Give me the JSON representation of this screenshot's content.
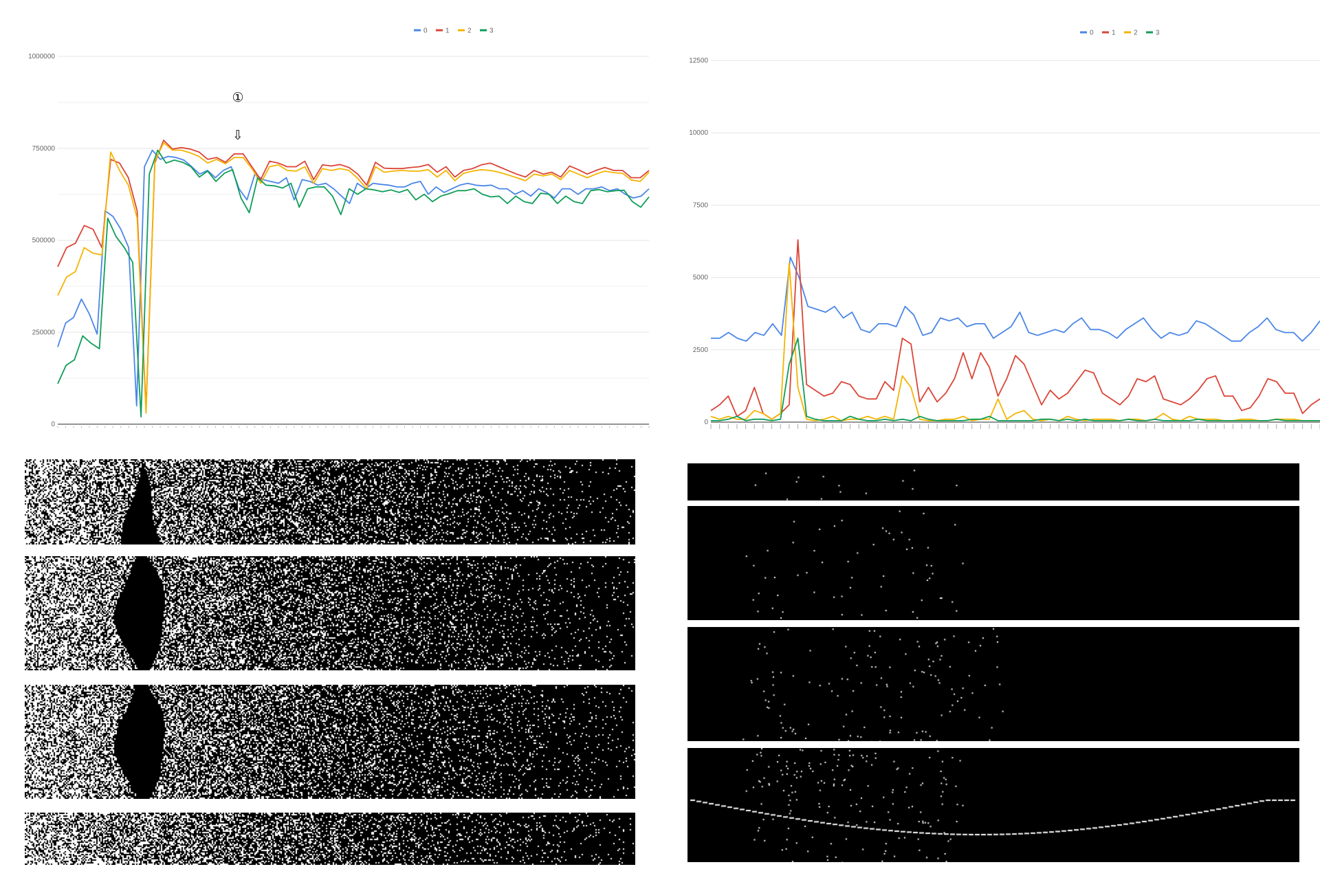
{
  "colors": {
    "s0": "#4a86e8",
    "s1": "#db4437",
    "s2": "#f4b400",
    "s3": "#0f9d58",
    "grid": "#e6e6e6",
    "axis": "#555555"
  },
  "legend": [
    "0",
    "1",
    "2",
    "3"
  ],
  "annotation": {
    "marker": "①",
    "arrow": "⇩"
  },
  "chart_data": [
    {
      "type": "line",
      "ylim": [
        0,
        1000000
      ],
      "y_ticks": [
        "0",
        "250000",
        "500000",
        "750000",
        "1000000"
      ],
      "series": [
        {
          "name": "0",
          "values": [
            210000,
            275000,
            290000,
            340000,
            300000,
            245000,
            580000,
            565000,
            530000,
            480000,
            50000,
            700000,
            745000,
            720000,
            728000,
            725000,
            718000,
            700000,
            680000,
            690000,
            670000,
            690000,
            700000,
            640000,
            610000,
            680000,
            665000,
            660000,
            655000,
            670000,
            610000,
            665000,
            660000,
            650000,
            655000,
            640000,
            620000,
            600000,
            655000,
            640000,
            655000,
            652000,
            650000,
            645000,
            645000,
            655000,
            660000,
            625000,
            645000,
            630000,
            640000,
            650000,
            655000,
            650000,
            648000,
            650000,
            640000,
            640000,
            625000,
            635000,
            620000,
            640000,
            630000,
            615000,
            640000,
            640000,
            625000,
            640000,
            640000,
            645000,
            635000,
            640000,
            625000,
            615000,
            620000,
            640000
          ]
        },
        {
          "name": "1",
          "values": [
            428000,
            480000,
            492000,
            540000,
            530000,
            480000,
            720000,
            710000,
            670000,
            580000,
            40000,
            710000,
            772000,
            748000,
            752000,
            748000,
            740000,
            720000,
            725000,
            712000,
            735000,
            735000,
            700000,
            665000,
            715000,
            710000,
            700000,
            700000,
            715000,
            665000,
            705000,
            702000,
            706000,
            698000,
            680000,
            650000,
            712000,
            696000,
            695000,
            695000,
            698000,
            700000,
            706000,
            685000,
            700000,
            672000,
            690000,
            695000,
            705000,
            710000,
            700000,
            690000,
            680000,
            672000,
            690000,
            680000,
            685000,
            672000,
            702000,
            692000,
            680000,
            690000,
            698000,
            690000,
            690000,
            670000,
            670000,
            690000
          ]
        },
        {
          "name": "2",
          "values": [
            350000,
            400000,
            415000,
            480000,
            465000,
            460000,
            740000,
            690000,
            650000,
            560000,
            30000,
            715000,
            765000,
            745000,
            745000,
            738000,
            728000,
            710000,
            720000,
            708000,
            725000,
            725000,
            695000,
            655000,
            700000,
            705000,
            690000,
            688000,
            700000,
            655000,
            695000,
            690000,
            695000,
            690000,
            668000,
            640000,
            700000,
            685000,
            688000,
            690000,
            688000,
            688000,
            692000,
            672000,
            690000,
            662000,
            682000,
            688000,
            692000,
            690000,
            685000,
            678000,
            670000,
            662000,
            680000,
            675000,
            680000,
            665000,
            690000,
            680000,
            670000,
            680000,
            688000,
            684000,
            682000,
            664000,
            660000,
            685000
          ]
        },
        {
          "name": "3",
          "values": [
            110000,
            160000,
            175000,
            240000,
            220000,
            205000,
            560000,
            510000,
            480000,
            440000,
            20000,
            680000,
            745000,
            710000,
            718000,
            712000,
            700000,
            672000,
            688000,
            660000,
            682000,
            692000,
            615000,
            575000,
            670000,
            650000,
            648000,
            642000,
            655000,
            590000,
            640000,
            645000,
            645000,
            620000,
            570000,
            640000,
            625000,
            640000,
            637000,
            632000,
            637000,
            630000,
            638000,
            610000,
            625000,
            605000,
            620000,
            627000,
            635000,
            635000,
            640000,
            625000,
            618000,
            620000,
            600000,
            620000,
            605000,
            600000,
            628000,
            625000,
            600000,
            620000,
            605000,
            600000,
            635000,
            638000,
            632000,
            635000,
            636000,
            605000,
            590000,
            618000
          ]
        }
      ]
    },
    {
      "type": "line",
      "ylim": [
        0,
        12500
      ],
      "y_ticks": [
        "0",
        "2500",
        "5000",
        "7500",
        "10000",
        "12500"
      ],
      "series": [
        {
          "name": "0",
          "values": [
            2900,
            2900,
            3100,
            2900,
            2800,
            3100,
            3000,
            3400,
            3000,
            5700,
            5000,
            4000,
            3900,
            3800,
            4000,
            3600,
            3800,
            3200,
            3100,
            3400,
            3400,
            3300,
            4000,
            3700,
            3000,
            3100,
            3600,
            3500,
            3600,
            3300,
            3400,
            3400,
            2900,
            3100,
            3300,
            3800,
            3100,
            3000,
            3100,
            3200,
            3100,
            3400,
            3600,
            3200,
            3200,
            3100,
            2900,
            3200,
            3400,
            3600,
            3200,
            2900,
            3100,
            3000,
            3100,
            3500,
            3400,
            3200,
            3000,
            2800,
            2800,
            3100,
            3300,
            3600,
            3200,
            3100,
            3100,
            2800,
            3100,
            3500
          ]
        },
        {
          "name": "1",
          "values": [
            400,
            600,
            900,
            200,
            400,
            1200,
            300,
            100,
            300,
            600,
            6300,
            1300,
            1100,
            900,
            1000,
            1400,
            1300,
            900,
            800,
            800,
            1400,
            1100,
            2900,
            2700,
            700,
            1200,
            700,
            1000,
            1500,
            2400,
            1500,
            2400,
            1900,
            900,
            1500,
            2300,
            2000,
            1300,
            600,
            1100,
            800,
            1000,
            1400,
            1800,
            1700,
            1000,
            800,
            600,
            900,
            1500,
            1400,
            1600,
            800,
            700,
            600,
            800,
            1100,
            1500,
            1600,
            900,
            900,
            400,
            500,
            900,
            1500,
            1400,
            1000,
            1000,
            300,
            600,
            800
          ]
        },
        {
          "name": "2",
          "values": [
            200,
            100,
            200,
            100,
            100,
            400,
            300,
            100,
            300,
            5500,
            1200,
            100,
            50,
            100,
            200,
            50,
            100,
            100,
            200,
            100,
            200,
            100,
            1600,
            1200,
            100,
            50,
            50,
            100,
            100,
            200,
            50,
            100,
            100,
            800,
            100,
            300,
            400,
            100,
            50,
            100,
            50,
            200,
            100,
            50,
            100,
            100,
            100,
            50,
            100,
            100,
            50,
            100,
            300,
            100,
            50,
            200,
            100,
            100,
            100,
            50,
            50,
            100,
            100,
            50,
            50,
            100,
            100,
            100,
            50,
            50,
            50
          ]
        },
        {
          "name": "3",
          "values": [
            50,
            50,
            100,
            200,
            50,
            100,
            100,
            50,
            100,
            2000,
            2900,
            200,
            100,
            50,
            50,
            50,
            200,
            100,
            50,
            50,
            100,
            50,
            100,
            50,
            200,
            100,
            50,
            50,
            50,
            50,
            100,
            100,
            200,
            50,
            50,
            50,
            50,
            50,
            100,
            100,
            50,
            100,
            50,
            100,
            50,
            50,
            50,
            50,
            100,
            50,
            50,
            100,
            50,
            50,
            50,
            50,
            100,
            50,
            50,
            50,
            50,
            50,
            50,
            50,
            50,
            100,
            50,
            50,
            50,
            50,
            50
          ]
        }
      ]
    }
  ]
}
